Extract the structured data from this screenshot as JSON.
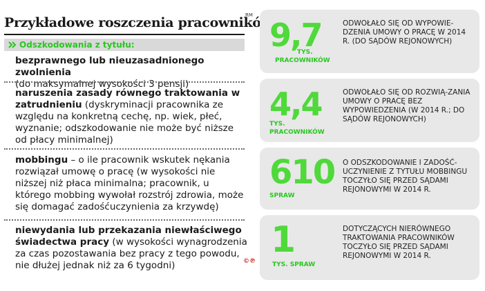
{
  "header": {
    "title": "Przykładowe roszczenia pracowników",
    "rm_label": "RM",
    "subhead": "Odszkodowania z tytułu:"
  },
  "claims": [
    {
      "bold": "bezprawnego lub nieuzasadnionego zwolnienia",
      "rest": "(do maksymalnej wysokości 3 pensji)"
    },
    {
      "bold": "naruszenia zasady równego traktowania w zatrudnieniu",
      "rest": "(dyskryminacji pracownika ze względu na konkretną cechę, np. wiek, płeć, wyznanie; odszkodowanie nie może być niższe od płacy minimalnej)"
    },
    {
      "bold": "mobbingu",
      "rest": "– o ile pracownik wskutek nękania rozwiązał umowę o pracę (w wysokości nie niższej niż płaca minimalna; pracownik, u którego mobbing wywołał rozstrój zdrowia, może się domagać zadośćuczynienia za krzywdę)"
    },
    {
      "bold": "niewydania lub przekazania niewłaściwego świadectwa pracy",
      "rest": "(w wysokości wynagrodzenia za czas pozostawania bez pracy z tego powodu, nie dłużej jednak niż za 6 tygodni)"
    }
  ],
  "stats": [
    {
      "value": "9,7",
      "unit_line1": "TYS.",
      "unit_line2": "PRACOWNIKÓW",
      "desc": "ODWOŁAŁO SIĘ OD WYPOWIE-DZENIA UMOWY O PRACĘ W 2014 R. (DO SĄDÓW REJONOWYCH)"
    },
    {
      "value": "4,4",
      "unit_line1": "TYS.",
      "unit_line2": "PRACOWNIKÓW",
      "desc": "ODWOŁAŁO SIĘ OD ROZWIĄ-ZANIA UMOWY O PRACĘ BEZ WYPOWIEDZENIA (W 2014 R.; DO SĄDÓW REJONOWYCH)"
    },
    {
      "value": "610",
      "unit_line1": "SPRAW",
      "unit_line2": "",
      "desc": "O ODSZKODOWANIE I ZADOŚĆ-UCZYNIENIE Z TYTUŁU MOBBINGU TOCZYŁO SIĘ PRZED SĄDAMI REJONOWYMI W 2014 R."
    },
    {
      "value": "1",
      "unit_line1": "TYS. SPRAW",
      "unit_line2": "",
      "desc": "DOTYCZĄCYCH NIERÓWNEGO TRAKTOWANIA PRACOWNIKÓW TOCZYŁO SIĘ PRZED SĄDAMI REJONOWYMI W 2014 R."
    }
  ],
  "copyright": "©℗",
  "colors": {
    "accent_green": "#4fd93a",
    "dark_green": "#28c71f",
    "card_bg": "#e8e8e8",
    "copyright_red": "#d4322c"
  }
}
